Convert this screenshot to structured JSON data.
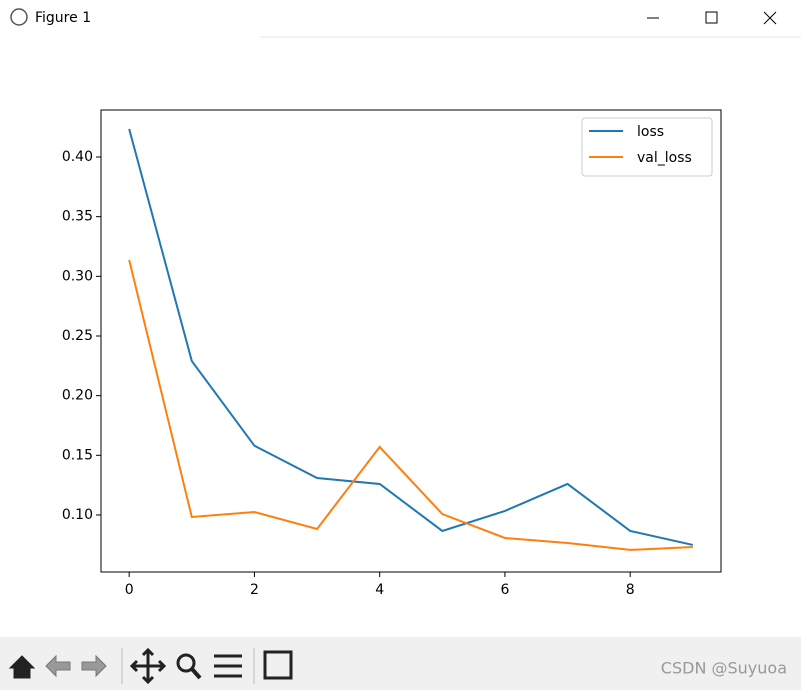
{
  "window": {
    "title": "Figure 1"
  },
  "watermark": "CSDN @Suyuoa",
  "chart_data": {
    "type": "line",
    "x": [
      0,
      1,
      2,
      3,
      4,
      5,
      6,
      7,
      8,
      9
    ],
    "series": [
      {
        "name": "loss",
        "color": "#1f77b4",
        "values": [
          0.4235,
          0.229,
          0.158,
          0.131,
          0.126,
          0.0866,
          0.1034,
          0.126,
          0.0866,
          0.0749
        ]
      },
      {
        "name": "val_loss",
        "color": "#ff7f0e",
        "values": [
          0.3137,
          0.0983,
          0.1025,
          0.0883,
          0.157,
          0.1008,
          0.0807,
          0.0765,
          0.0707,
          0.0732
        ]
      }
    ],
    "xlim": [
      -0.45,
      9.45
    ],
    "ylim": [
      0.0522,
      0.4394
    ],
    "xticks": [
      0,
      2,
      4,
      6,
      8
    ],
    "yticks": [
      {
        "value": 0.1,
        "label": "0.10"
      },
      {
        "value": 0.15,
        "label": "0.15"
      },
      {
        "value": 0.2,
        "label": "0.20"
      },
      {
        "value": 0.25,
        "label": "0.25"
      },
      {
        "value": 0.3,
        "label": "0.30"
      },
      {
        "value": 0.35,
        "label": "0.35"
      },
      {
        "value": 0.4,
        "label": "0.40"
      }
    ],
    "legend": "upper right",
    "grid": false
  }
}
